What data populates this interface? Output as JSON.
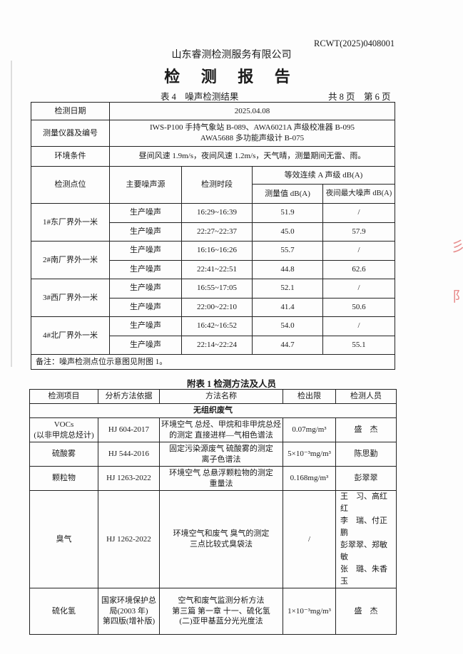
{
  "header": {
    "report_no": "RCWT(2025)0408001",
    "company": "山东睿测检测服务有限公司",
    "title": "检 测 报 告",
    "table_caption": "表 4　噪声检测结果",
    "page_info": "共 8 页　第 6 页"
  },
  "noise_table": {
    "date_label": "检测日期",
    "date_value": "2025.04.08",
    "instr_label": "测量仪器及编号",
    "instr_line1": "IWS-P100 手持气象站 B-089、AWA6021A 声级校准器 B-095",
    "instr_line2": "AWA5688 多功能声级计 B-075",
    "env_label": "环境条件",
    "env_value": "昼间风速 1.9m/s，夜间风速 1.2m/s，天气晴，测量期间无雷、雨。",
    "col_point": "检测点位",
    "col_source": "主要噪声源",
    "col_period": "检测时段",
    "col_group": "等效连续 A 声级 dB(A)",
    "col_measured": "测量值 dB(A)",
    "col_nightmax": "夜间最大噪声 dB(A)",
    "points": [
      {
        "name": "1#东厂界外一米",
        "rows": [
          {
            "source": "生产噪声",
            "period": "16:29~16:39",
            "value": "51.9",
            "max": "/"
          },
          {
            "source": "生产噪声",
            "period": "22:27~22:37",
            "value": "45.0",
            "max": "57.9"
          }
        ]
      },
      {
        "name": "2#南厂界外一米",
        "rows": [
          {
            "source": "生产噪声",
            "period": "16:16~16:26",
            "value": "55.7",
            "max": "/"
          },
          {
            "source": "生产噪声",
            "period": "22:41~22:51",
            "value": "44.8",
            "max": "62.6"
          }
        ]
      },
      {
        "name": "3#西厂界外一米",
        "rows": [
          {
            "source": "生产噪声",
            "period": "16:55~17:05",
            "value": "52.1",
            "max": "/"
          },
          {
            "source": "生产噪声",
            "period": "22:00~22:10",
            "value": "41.4",
            "max": "50.6"
          }
        ]
      },
      {
        "name": "4#北厂界外一米",
        "rows": [
          {
            "source": "生产噪声",
            "period": "16:42~16:52",
            "value": "54.0",
            "max": "/"
          },
          {
            "source": "生产噪声",
            "period": "22:14~22:24",
            "value": "44.7",
            "max": "55.1"
          }
        ]
      }
    ],
    "note": "备注：噪声检测点位示意图见附图 1。"
  },
  "method_table": {
    "caption": "附表 1 检测方法及人员",
    "headers": [
      "检测项目",
      "分析方法依据",
      "方法名称",
      "检出限",
      "检测人员"
    ],
    "section": "无组织废气",
    "rows": [
      {
        "item": [
          "VOCs",
          "(以非甲烷总烃计)"
        ],
        "basis": [
          "HJ 604-2017"
        ],
        "method": [
          "环境空气 总烃、甲烷和非甲烷总烃",
          "的测定 直接进样—气相色谱法"
        ],
        "limit": "0.07mg/m³",
        "staff": [
          "盛　杰"
        ]
      },
      {
        "item": [
          "硫酸雾"
        ],
        "basis": [
          "HJ 544-2016"
        ],
        "method": [
          "固定污染源废气 硫酸雾的测定",
          "离子色谱法"
        ],
        "limit": "5×10⁻³mg/m³",
        "staff": [
          "陈思勤"
        ]
      },
      {
        "item": [
          "颗粒物"
        ],
        "basis": [
          "HJ 1263-2022"
        ],
        "method": [
          "环境空气 总悬浮颗粒物的测定",
          "重量法"
        ],
        "limit": "0.168mg/m³",
        "staff": [
          "彭翠翠"
        ]
      },
      {
        "item": [
          "臭气"
        ],
        "basis": [
          "HJ 1262-2022"
        ],
        "method": [
          "环境空气和废气 臭气的测定",
          "三点比较式臭袋法"
        ],
        "limit": "/",
        "staff": [
          "王　习、高红红",
          "李　瑞、付正鹏",
          "彭翠翠、郑敏敏",
          "张　璐、朱香玉"
        ]
      },
      {
        "item": [
          "硫化氢"
        ],
        "basis": [
          "国家环境保护总",
          "局(2003 年)",
          "第四版(增补版)"
        ],
        "method": [
          "空气和废气监测分析方法",
          "第三篇 第一章 十一、硫化氢",
          "(二)亚甲基蓝分光光度法"
        ],
        "limit": "1×10⁻³mg/m³",
        "staff": [
          "盛　杰"
        ]
      }
    ]
  }
}
